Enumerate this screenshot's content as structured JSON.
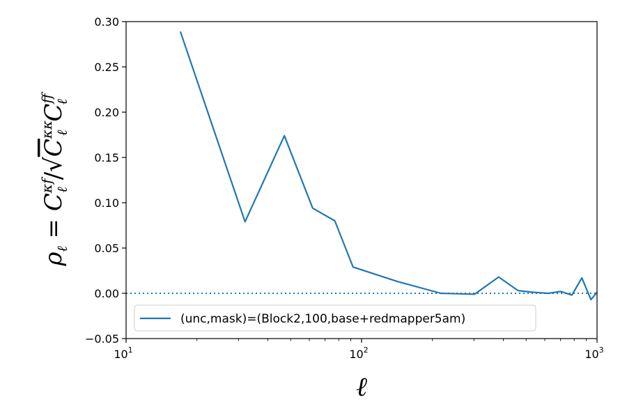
{
  "chart_data": {
    "type": "line",
    "title": "",
    "xlabel": "ℓ",
    "ylabel": "ρ_ℓ = C_ℓ^{κf} / √(C_ℓ^{κκ} C_ℓ^{ff})",
    "x_scale": "log",
    "xlim": [
      10,
      1000
    ],
    "ylim": [
      -0.05,
      0.3
    ],
    "x_ticks": [
      {
        "value": 10,
        "base": "10",
        "exp": "1"
      },
      {
        "value": 100,
        "base": "10",
        "exp": "2"
      },
      {
        "value": 1000,
        "base": "10",
        "exp": "3"
      }
    ],
    "y_ticks": [
      {
        "value": 0.3,
        "label": "0.30"
      },
      {
        "value": 0.25,
        "label": "0.25"
      },
      {
        "value": 0.2,
        "label": "0.20"
      },
      {
        "value": 0.15,
        "label": "0.15"
      },
      {
        "value": 0.1,
        "label": "0.10"
      },
      {
        "value": 0.05,
        "label": "0.05"
      },
      {
        "value": 0.0,
        "label": "0.00"
      },
      {
        "value": -0.05,
        "label": "−0.05"
      }
    ],
    "reference_line": {
      "y": 0.0,
      "style": "dotted",
      "color": "#1f77b4"
    },
    "legend_position": "lower-left",
    "series": [
      {
        "name": "(unc,mask)=(Block2,100,base+redmapper5am)",
        "color": "#1f77b4",
        "x": [
          17,
          32,
          47,
          62,
          77,
          92,
          142,
          217,
          302,
          382,
          462,
          542,
          622,
          702,
          782,
          862,
          942,
          1000
        ],
        "y": [
          0.289,
          0.079,
          0.174,
          0.094,
          0.08,
          0.029,
          0.013,
          0.0,
          -0.001,
          0.018,
          0.003,
          0.001,
          0.0,
          0.002,
          -0.002,
          0.017,
          -0.007,
          0.001
        ]
      }
    ]
  }
}
